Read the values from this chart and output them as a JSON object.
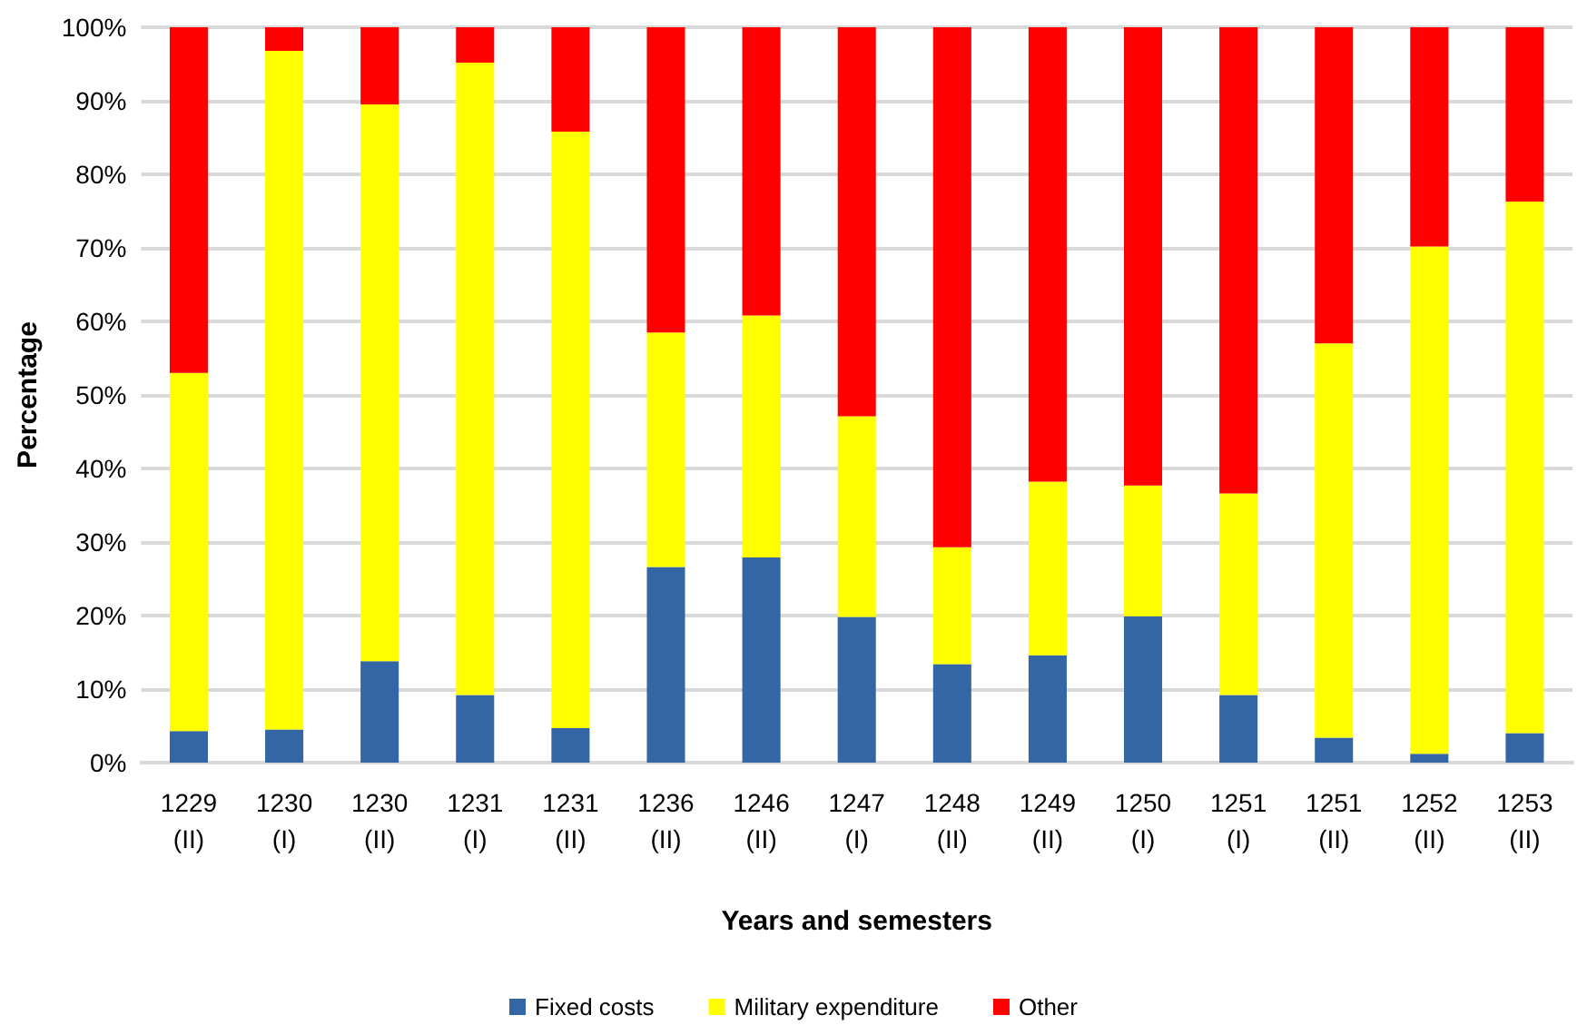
{
  "chart_data": {
    "type": "bar",
    "stacked": true,
    "xlabel": "Years and semesters",
    "ylabel": "Percentage",
    "categories": [
      "1229\n(II)",
      "1230\n(I)",
      "1230\n(II)",
      "1231\n(I)",
      "1231\n(II)",
      "1236\n(II)",
      "1246\n(II)",
      "1247\n(I)",
      "1248\n(II)",
      "1249\n(II)",
      "1250\n(I)",
      "1251\n(I)",
      "1251\n(II)",
      "1252\n(II)",
      "1253\n(II)"
    ],
    "series": [
      {
        "name": "Fixed costs",
        "color": "#3465a4",
        "values": [
          4.3,
          4.5,
          13.8,
          9.2,
          4.7,
          26.6,
          27.9,
          19.8,
          13.4,
          14.6,
          19.9,
          9.2,
          3.4,
          1.2,
          4.0
        ]
      },
      {
        "name": "Military expenditure",
        "color": "#ffff00",
        "values": [
          48.7,
          92.3,
          75.7,
          86.0,
          81.1,
          31.9,
          32.9,
          27.3,
          15.9,
          23.6,
          17.8,
          27.4,
          53.6,
          69.0,
          72.3
        ]
      },
      {
        "name": "Other",
        "color": "#ff0000",
        "values": [
          47.0,
          3.2,
          10.5,
          4.8,
          14.2,
          41.5,
          39.2,
          52.9,
          70.7,
          61.8,
          62.3,
          63.4,
          43.0,
          29.8,
          23.7
        ]
      }
    ],
    "ylim": [
      0,
      100
    ],
    "yticks": [
      {
        "value": 0,
        "label": "0%"
      },
      {
        "value": 10,
        "label": "10%"
      },
      {
        "value": 20,
        "label": "20%"
      },
      {
        "value": 30,
        "label": "30%"
      },
      {
        "value": 40,
        "label": "40%"
      },
      {
        "value": 50,
        "label": "50%"
      },
      {
        "value": 60,
        "label": "60%"
      },
      {
        "value": 70,
        "label": "70%"
      },
      {
        "value": 80,
        "label": "80%"
      },
      {
        "value": 90,
        "label": "90%"
      },
      {
        "value": 100,
        "label": "100%"
      }
    ],
    "grid": "y",
    "legend": "bottom"
  }
}
